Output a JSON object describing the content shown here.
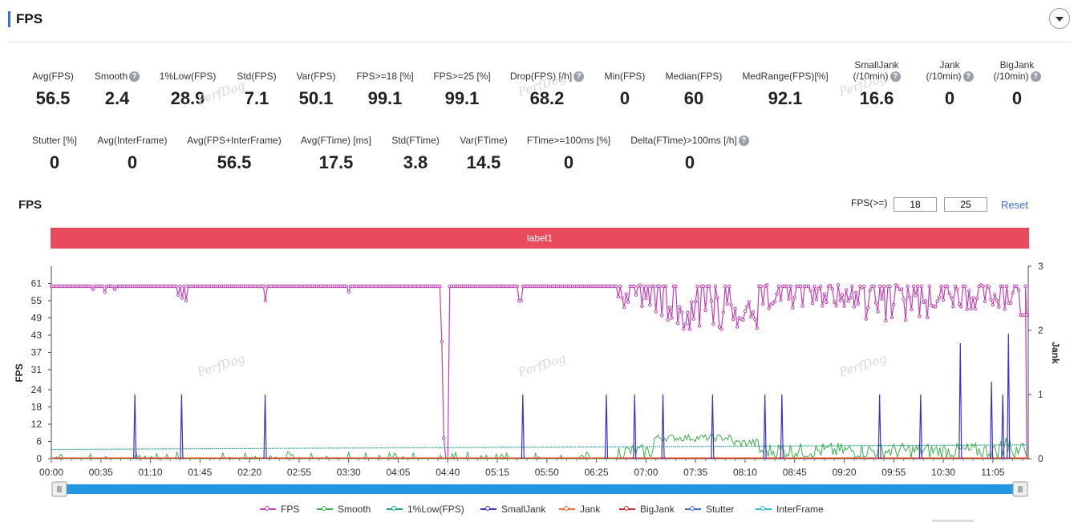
{
  "header": {
    "title": "FPS"
  },
  "stats_row1": [
    {
      "label": "Avg(FPS)",
      "value": "56.5",
      "help": false
    },
    {
      "label": "Smooth",
      "value": "2.4",
      "help": true
    },
    {
      "label": "1%Low(FPS)",
      "value": "28.9",
      "help": false
    },
    {
      "label": "Std(FPS)",
      "value": "7.1",
      "help": false
    },
    {
      "label": "Var(FPS)",
      "value": "50.1",
      "help": false
    },
    {
      "label": "FPS>=18 [%]",
      "value": "99.1",
      "help": false
    },
    {
      "label": "FPS>=25 [%]",
      "value": "99.1",
      "help": false
    },
    {
      "label": "Drop(FPS) [/h]",
      "value": "68.2",
      "help": true
    },
    {
      "label": "Min(FPS)",
      "value": "0",
      "help": false
    },
    {
      "label": "Median(FPS)",
      "value": "60",
      "help": false
    },
    {
      "label": "MedRange(FPS)[%]",
      "value": "92.1",
      "help": false
    },
    {
      "label": "SmallJank",
      "label2": "(/10min)",
      "value": "16.6",
      "help": true
    },
    {
      "label": "Jank",
      "label2": "(/10min)",
      "value": "0",
      "help": true
    },
    {
      "label": "BigJank",
      "label2": "(/10min)",
      "value": "0",
      "help": true
    }
  ],
  "stats_row2": [
    {
      "label": "Stutter [%]",
      "value": "0",
      "help": false
    },
    {
      "label": "Avg(InterFrame)",
      "value": "0",
      "help": false
    },
    {
      "label": "Avg(FPS+InterFrame)",
      "value": "56.5",
      "help": false
    },
    {
      "label": "Avg(FTime) [ms]",
      "value": "17.5",
      "help": false
    },
    {
      "label": "Std(FTime)",
      "value": "3.8",
      "help": false
    },
    {
      "label": "Var(FTime)",
      "value": "14.5",
      "help": false
    },
    {
      "label": "FTime>=100ms [%]",
      "value": "0",
      "help": false
    },
    {
      "label": "Delta(FTime)>100ms [/h]",
      "value": "0",
      "help": true
    }
  ],
  "chart_header": {
    "title": "FPS",
    "threshold_label": "FPS(>=)",
    "threshold1": "18",
    "threshold2": "25",
    "reset_label": "Reset"
  },
  "label_bar": "label1",
  "watermark": "PerfDog",
  "chart_data": {
    "type": "line",
    "title": "FPS",
    "ylabel": "FPS",
    "y2label": "Jank",
    "ylim": [
      0,
      67
    ],
    "y2lim": [
      0,
      3
    ],
    "yticks": [
      "0",
      "6",
      "12",
      "18",
      "24",
      "31",
      "37",
      "43",
      "49",
      "55",
      "61"
    ],
    "y2ticks": [
      "0",
      "1",
      "2",
      "3"
    ],
    "xticks": [
      "00:00",
      "00:35",
      "01:10",
      "01:45",
      "02:20",
      "02:55",
      "03:30",
      "04:05",
      "04:40",
      "05:15",
      "05:50",
      "06:25",
      "07:00",
      "07:35",
      "08:10",
      "08:45",
      "09:20",
      "09:55",
      "10:30",
      "11:05"
    ],
    "duration_seconds": 690,
    "fps_segments": [
      {
        "t": [
          0,
          275
        ],
        "level": 60,
        "drops": [
          {
            "t": 29,
            "v": 59
          },
          {
            "t": 38,
            "v": 58
          },
          {
            "t": 45,
            "v": 59
          },
          {
            "t": 90,
            "v": 57
          },
          {
            "t": 92,
            "v": 56
          },
          {
            "t": 95,
            "v": 55
          },
          {
            "t": 100,
            "v": 58
          },
          {
            "t": 151,
            "v": 55
          },
          {
            "t": 210,
            "v": 58
          }
        ]
      },
      {
        "t": [
          275,
          277
        ],
        "level": 0
      },
      {
        "t": [
          282,
          400
        ],
        "level": 60,
        "drops": [
          {
            "t": 330,
            "v": 55
          },
          {
            "t": 332,
            "v": 55
          }
        ]
      },
      {
        "t": [
          400,
          690
        ],
        "level": 50,
        "note": "variable 43-61 region"
      }
    ],
    "fps_end_drop": {
      "t": 689,
      "v": 0
    },
    "fps_drop_main": {
      "t": 277,
      "v": 0
    },
    "series": [
      {
        "name": "FPS",
        "color": "#c13fb3",
        "axis": "left"
      },
      {
        "name": "Smooth",
        "color": "#3ab04a",
        "axis": "left"
      },
      {
        "name": "1%Low(FPS)",
        "color": "#1a9e8c",
        "axis": "left",
        "values": [
          3.2,
          4.8
        ]
      },
      {
        "name": "SmallJank",
        "color": "#3a2fd1",
        "axis": "right",
        "spikes": [
          {
            "t": 59,
            "v": 1
          },
          {
            "t": 92,
            "v": 1
          },
          {
            "t": 151,
            "v": 1
          },
          {
            "t": 333,
            "v": 1
          },
          {
            "t": 392,
            "v": 1
          },
          {
            "t": 412,
            "v": 1
          },
          {
            "t": 432,
            "v": 1
          },
          {
            "t": 467,
            "v": 1
          },
          {
            "t": 504,
            "v": 1
          },
          {
            "t": 516,
            "v": 1
          },
          {
            "t": 585,
            "v": 1
          },
          {
            "t": 614,
            "v": 1
          },
          {
            "t": 642,
            "v": 1.8
          },
          {
            "t": 664,
            "v": 1.2
          },
          {
            "t": 672,
            "v": 1
          },
          {
            "t": 676,
            "v": 1.95
          }
        ]
      },
      {
        "name": "Jank",
        "color": "#ee6b2c",
        "axis": "right"
      },
      {
        "name": "BigJank",
        "color": "#cf2c2c",
        "axis": "right"
      },
      {
        "name": "Stutter",
        "color": "#3f6cd6",
        "axis": "right"
      },
      {
        "name": "InterFrame",
        "color": "#2bc0d6",
        "axis": "right"
      }
    ]
  },
  "legend": [
    "FPS",
    "Smooth",
    "1%Low(FPS)",
    "SmallJank",
    "Jank",
    "BigJank",
    "Stutter",
    "InterFrame"
  ]
}
